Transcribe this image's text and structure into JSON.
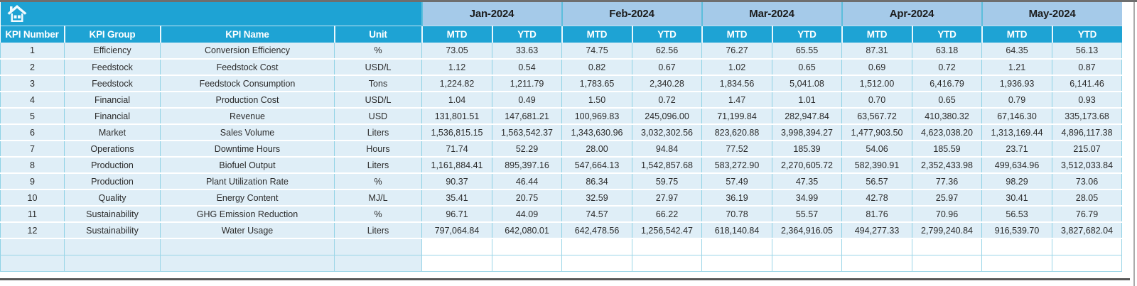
{
  "table": {
    "left_headers": [
      "KPI Number",
      "KPI Group",
      "KPI Name",
      "Unit"
    ],
    "months": [
      "Jan-2024",
      "Feb-2024",
      "Mar-2024",
      "Apr-2024",
      "May-2024"
    ],
    "sub_headers": [
      "MTD",
      "YTD"
    ],
    "rows": [
      {
        "number": "1",
        "group": "Efficiency",
        "name": "Conversion Efficiency",
        "unit": "%",
        "values": [
          "73.05",
          "33.63",
          "74.75",
          "62.56",
          "76.27",
          "65.55",
          "87.31",
          "63.18",
          "64.35",
          "56.13"
        ]
      },
      {
        "number": "2",
        "group": "Feedstock",
        "name": "Feedstock Cost",
        "unit": "USD/L",
        "values": [
          "1.12",
          "0.54",
          "0.82",
          "0.67",
          "1.02",
          "0.65",
          "0.69",
          "0.72",
          "1.21",
          "0.87"
        ]
      },
      {
        "number": "3",
        "group": "Feedstock",
        "name": "Feedstock Consumption",
        "unit": "Tons",
        "values": [
          "1,224.82",
          "1,211.79",
          "1,783.65",
          "2,340.28",
          "1,834.56",
          "5,041.08",
          "1,512.00",
          "6,416.79",
          "1,936.93",
          "6,141.46"
        ]
      },
      {
        "number": "4",
        "group": "Financial",
        "name": "Production Cost",
        "unit": "USD/L",
        "values": [
          "1.04",
          "0.49",
          "1.50",
          "0.72",
          "1.47",
          "1.01",
          "0.70",
          "0.65",
          "0.79",
          "0.93"
        ]
      },
      {
        "number": "5",
        "group": "Financial",
        "name": "Revenue",
        "unit": "USD",
        "values": [
          "131,801.51",
          "147,681.21",
          "100,969.83",
          "245,096.00",
          "71,199.84",
          "282,947.84",
          "63,567.72",
          "410,380.32",
          "67,146.30",
          "335,173.68"
        ]
      },
      {
        "number": "6",
        "group": "Market",
        "name": "Sales Volume",
        "unit": "Liters",
        "values": [
          "1,536,815.15",
          "1,563,542.37",
          "1,343,630.96",
          "3,032,302.56",
          "823,620.88",
          "3,998,394.27",
          "1,477,903.50",
          "4,623,038.20",
          "1,313,169.44",
          "4,896,117.38"
        ]
      },
      {
        "number": "7",
        "group": "Operations",
        "name": "Downtime Hours",
        "unit": "Hours",
        "values": [
          "71.74",
          "52.29",
          "28.00",
          "94.84",
          "77.52",
          "185.39",
          "54.06",
          "185.59",
          "23.71",
          "215.07"
        ]
      },
      {
        "number": "8",
        "group": "Production",
        "name": "Biofuel Output",
        "unit": "Liters",
        "values": [
          "1,161,884.41",
          "895,397.16",
          "547,664.13",
          "1,542,857.68",
          "583,272.90",
          "2,270,605.72",
          "582,390.91",
          "2,352,433.98",
          "499,634.96",
          "3,512,033.84"
        ]
      },
      {
        "number": "9",
        "group": "Production",
        "name": "Plant Utilization Rate",
        "unit": "%",
        "values": [
          "90.37",
          "46.44",
          "86.34",
          "59.75",
          "57.49",
          "47.35",
          "56.57",
          "77.36",
          "98.29",
          "73.06"
        ]
      },
      {
        "number": "10",
        "group": "Quality",
        "name": "Energy Content",
        "unit": "MJ/L",
        "values": [
          "35.41",
          "20.75",
          "32.59",
          "27.97",
          "36.19",
          "34.99",
          "42.78",
          "25.97",
          "30.41",
          "28.05"
        ]
      },
      {
        "number": "11",
        "group": "Sustainability",
        "name": "GHG Emission Reduction",
        "unit": "%",
        "values": [
          "96.71",
          "44.09",
          "74.57",
          "66.22",
          "70.78",
          "55.57",
          "81.76",
          "70.96",
          "56.53",
          "76.79"
        ]
      },
      {
        "number": "12",
        "group": "Sustainability",
        "name": "Water Usage",
        "unit": "Liters",
        "values": [
          "797,064.84",
          "642,080.01",
          "642,478.56",
          "1,256,542.47",
          "618,140.84",
          "2,364,916.05",
          "494,277.33",
          "2,799,240.84",
          "916,539.70",
          "3,827,682.04"
        ]
      }
    ],
    "empty_row_count": 2
  },
  "icons": {
    "home": "home-icon"
  },
  "colors": {
    "header_cyan": "#1ea3d4",
    "month_band_blue": "#a5cae9",
    "row_blue": "#dfeef7",
    "cell_border_cyan": "#8fd2e5",
    "header_text": "#ffffff",
    "data_text": "#2b2b2b"
  }
}
